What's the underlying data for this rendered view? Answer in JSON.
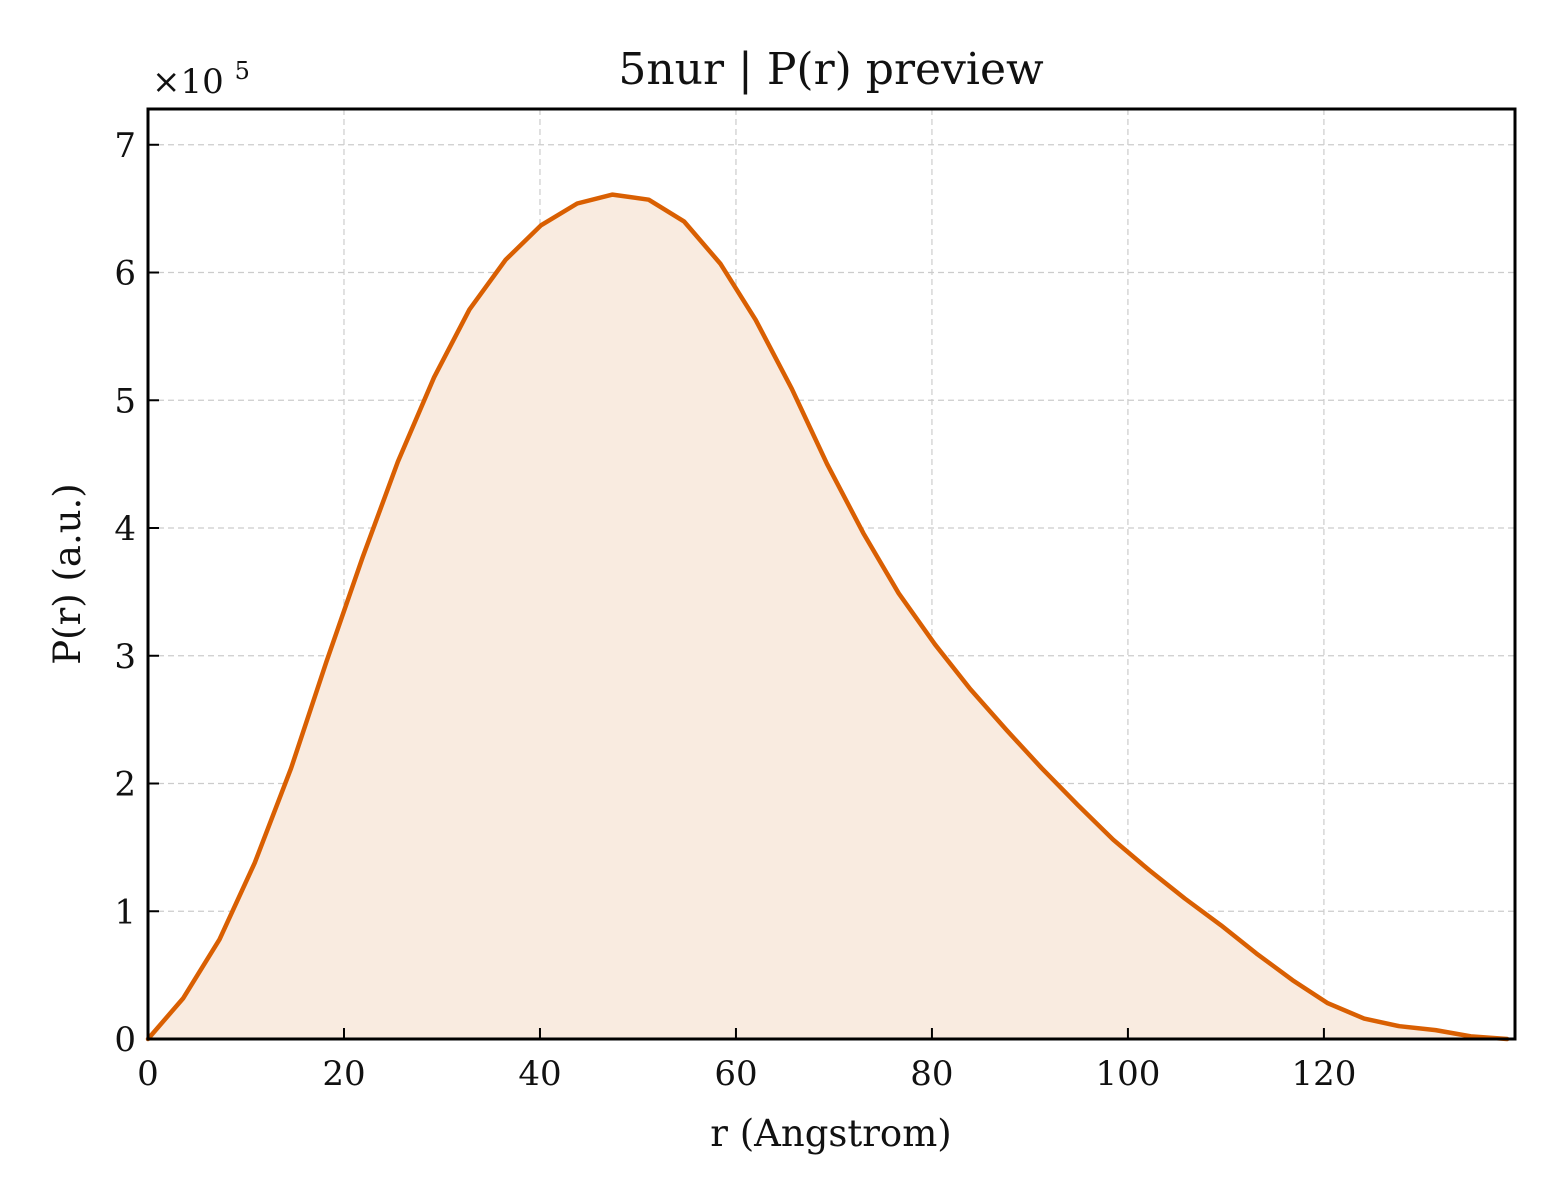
{
  "chart_data": {
    "type": "area",
    "title": "5nur | P(r) preview",
    "xlabel": "r (Angstrom)",
    "ylabel": "P(r) (a.u.)",
    "y_multiplier_label": "×10",
    "y_multiplier_exponent": "5",
    "xlim": [
      0,
      139.5
    ],
    "ylim": [
      0,
      7.28
    ],
    "x_ticks": [
      0,
      20,
      40,
      60,
      80,
      100,
      120
    ],
    "y_ticks": [
      0,
      1,
      2,
      3,
      4,
      5,
      6,
      7
    ],
    "grid": true,
    "series": [
      {
        "color": "#d95f02",
        "fill_color": "#f9ebe0",
        "x": [
          0,
          3.6,
          7.3,
          10.9,
          14.6,
          18.2,
          21.9,
          25.5,
          29.2,
          32.8,
          36.5,
          40.1,
          43.8,
          47.4,
          51.1,
          54.7,
          58.4,
          62.0,
          65.7,
          69.3,
          73.0,
          76.6,
          80.3,
          83.9,
          87.6,
          91.2,
          94.9,
          98.5,
          102.2,
          105.8,
          109.5,
          113.1,
          116.8,
          120.4,
          124.1,
          127.7,
          131.4,
          135.0,
          138.7
        ],
        "y": [
          0.0,
          0.32,
          0.78,
          1.38,
          2.12,
          2.95,
          3.77,
          4.52,
          5.18,
          5.71,
          6.1,
          6.37,
          6.54,
          6.61,
          6.57,
          6.4,
          6.07,
          5.63,
          5.09,
          4.5,
          3.96,
          3.49,
          3.09,
          2.74,
          2.42,
          2.12,
          1.83,
          1.56,
          1.32,
          1.1,
          0.89,
          0.67,
          0.46,
          0.28,
          0.16,
          0.1,
          0.07,
          0.02,
          0.0
        ]
      }
    ]
  }
}
